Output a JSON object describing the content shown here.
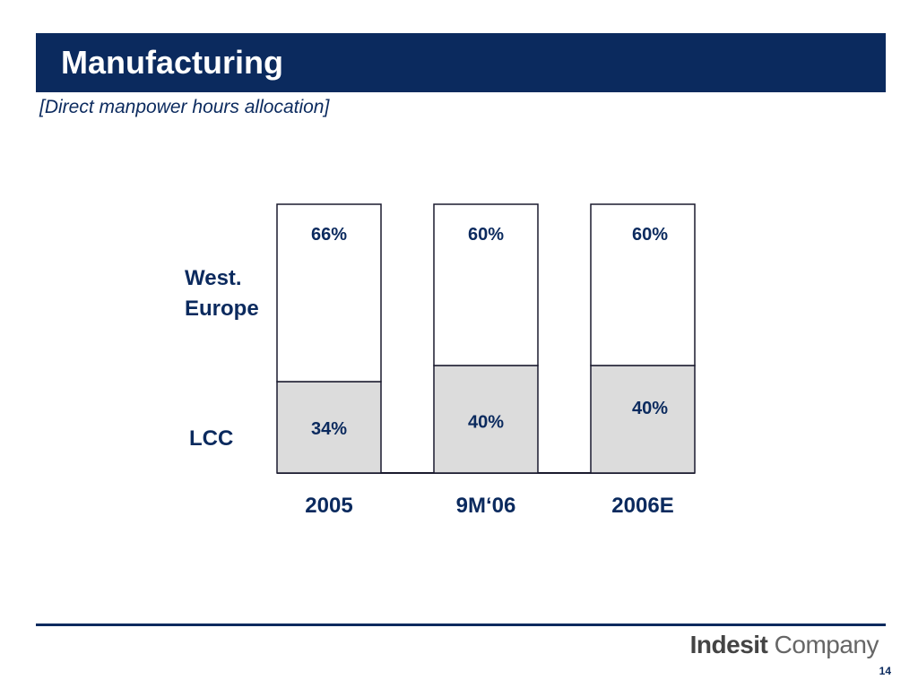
{
  "header": {
    "title": "Manufacturing",
    "subtitle": "[Direct manpower hours allocation]"
  },
  "chart_data": {
    "type": "bar",
    "stacked": true,
    "categories": [
      "2005",
      "9M‘06",
      "2006E"
    ],
    "series": [
      {
        "name": "LCC",
        "values": [
          34,
          40,
          40
        ],
        "labels": [
          "34%",
          "40%",
          "40%"
        ],
        "color": "#dcdcdc"
      },
      {
        "name": "West. Europe",
        "values": [
          66,
          60,
          60
        ],
        "labels": [
          "66%",
          "60%",
          "60%"
        ],
        "color": "#ffffff"
      }
    ],
    "row_labels": {
      "top_line1": "West.",
      "top_line2": "Europe",
      "bottom": "LCC"
    },
    "ylim": [
      0,
      100
    ],
    "grid": false,
    "colors": {
      "text": "#0b2a5e",
      "outline": "#1a1a2e"
    }
  },
  "footer": {
    "brand_strong": "Indesit",
    "brand_light": " Company",
    "page_number": "14"
  }
}
